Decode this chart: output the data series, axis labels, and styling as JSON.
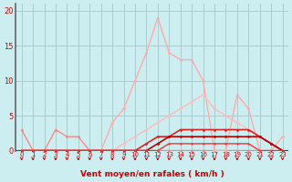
{
  "bg_color": "#cceef0",
  "grid_color": "#aaccd0",
  "xlabel": "Vent moyen/en rafales ( km/h )",
  "xlabel_color": "#cc0000",
  "tick_color": "#cc0000",
  "arrow_color": "#cc0000",
  "xlim": [
    -0.5,
    23.5
  ],
  "ylim": [
    0,
    21
  ],
  "yticks": [
    0,
    5,
    10,
    15,
    20
  ],
  "xticks": [
    0,
    1,
    2,
    3,
    4,
    5,
    6,
    7,
    8,
    9,
    10,
    11,
    12,
    13,
    14,
    15,
    16,
    17,
    18,
    19,
    20,
    21,
    22,
    23
  ],
  "series": [
    {
      "x": [
        0,
        1,
        2,
        3,
        4,
        5,
        6,
        7,
        8,
        9,
        10,
        11,
        12,
        13,
        14,
        15,
        16,
        17,
        18,
        19,
        20,
        21,
        22,
        23
      ],
      "y": [
        3,
        0,
        0,
        3,
        2,
        2,
        0,
        0,
        0,
        0,
        0,
        0,
        0,
        0,
        0,
        0,
        0,
        0,
        0,
        0,
        0,
        0,
        0,
        0
      ],
      "color": "#ff8080",
      "lw": 0.9,
      "marker": "o",
      "ms": 2.0
    },
    {
      "x": [
        0,
        1,
        2,
        3,
        4,
        5,
        6,
        7,
        8,
        9,
        10,
        11,
        12,
        13,
        14,
        15,
        16,
        17,
        18,
        19,
        20,
        21,
        22,
        23
      ],
      "y": [
        0,
        0,
        0,
        0,
        0,
        0,
        0,
        0,
        4,
        6,
        10,
        14,
        19,
        14,
        13,
        13,
        10,
        0,
        0,
        8,
        6,
        0,
        0,
        2
      ],
      "color": "#ffaaaa",
      "lw": 1.0,
      "marker": "o",
      "ms": 2.0
    },
    {
      "x": [
        0,
        1,
        2,
        3,
        4,
        5,
        6,
        7,
        8,
        9,
        10,
        11,
        12,
        13,
        14,
        15,
        16,
        17,
        18,
        19,
        20,
        21,
        22,
        23
      ],
      "y": [
        0,
        0,
        0,
        0,
        0,
        0,
        0,
        0,
        0,
        1,
        2,
        3,
        4,
        5,
        6,
        7,
        8,
        6,
        5,
        4,
        3,
        2,
        1,
        0
      ],
      "color": "#ffbbbb",
      "lw": 1.0,
      "marker": "o",
      "ms": 2.0
    },
    {
      "x": [
        0,
        1,
        2,
        3,
        4,
        5,
        6,
        7,
        8,
        9,
        10,
        11,
        12,
        13,
        14,
        15,
        16,
        17,
        18,
        19,
        20,
        21,
        22,
        23
      ],
      "y": [
        0,
        0,
        0,
        0,
        0,
        0,
        0,
        0,
        0,
        0,
        0,
        1,
        2,
        2,
        3,
        3,
        3,
        3,
        3,
        3,
        3,
        2,
        1,
        0
      ],
      "color": "#dd2222",
      "lw": 1.2,
      "marker": "o",
      "ms": 2.0
    },
    {
      "x": [
        0,
        1,
        2,
        3,
        4,
        5,
        6,
        7,
        8,
        9,
        10,
        11,
        12,
        13,
        14,
        15,
        16,
        17,
        18,
        19,
        20,
        21,
        22,
        23
      ],
      "y": [
        0,
        0,
        0,
        0,
        0,
        0,
        0,
        0,
        0,
        0,
        0,
        0,
        1,
        2,
        2,
        2,
        2,
        2,
        2,
        2,
        2,
        2,
        1,
        0
      ],
      "color": "#bb0000",
      "lw": 1.2,
      "marker": "o",
      "ms": 2.0
    },
    {
      "x": [
        0,
        1,
        2,
        3,
        4,
        5,
        6,
        7,
        8,
        9,
        10,
        11,
        12,
        13,
        14,
        15,
        16,
        17,
        18,
        19,
        20,
        21,
        22,
        23
      ],
      "y": [
        0,
        0,
        0,
        0,
        0,
        0,
        0,
        0,
        0,
        0,
        0,
        0,
        0,
        1,
        1,
        1,
        1,
        1,
        1,
        1,
        1,
        0,
        0,
        0
      ],
      "color": "#ee3333",
      "lw": 1.0,
      "marker": "o",
      "ms": 1.5
    }
  ],
  "bottom_line_color": "#cc0000",
  "spine_color": "#666666"
}
